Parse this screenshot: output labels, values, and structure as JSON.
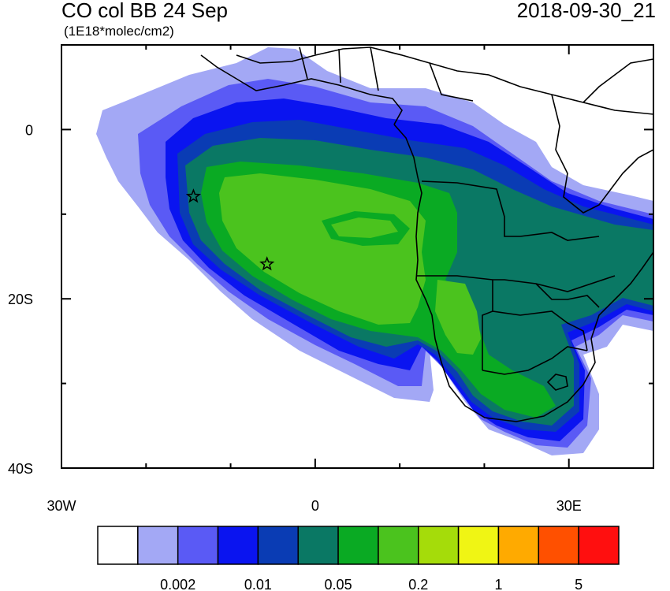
{
  "map": {
    "title": "CO col BB 24 Sep",
    "units": "(1E18*molec/cm2)",
    "timestamp": "2018-09-30_21",
    "x_ticks": [
      {
        "lon": -30,
        "label": "30W"
      },
      {
        "lon": 0,
        "label": "0"
      },
      {
        "lon": 30,
        "label": "30E"
      }
    ],
    "y_ticks": [
      {
        "lat": 0,
        "label": "0"
      },
      {
        "lat": -20,
        "label": "20S"
      },
      {
        "lat": -40,
        "label": "40S"
      }
    ],
    "lon_range": [
      -30,
      40
    ],
    "lat_range": [
      -40,
      10
    ],
    "markers": [
      {
        "type": "star",
        "lon": -14.4,
        "lat": -7.9
      },
      {
        "type": "star",
        "lon": -5.7,
        "lat": -15.9
      }
    ],
    "colorbar": {
      "colors": [
        "#ffffff",
        "#a3a8f5",
        "#5a5af5",
        "#0a14f0",
        "#0a3cb4",
        "#0a7864",
        "#0aaa23",
        "#4bc31e",
        "#a5dc0a",
        "#f0f514",
        "#ffaa00",
        "#ff5000",
        "#ff0f0f"
      ],
      "labels": [
        {
          "boundary": 2,
          "text": "0.002"
        },
        {
          "boundary": 4,
          "text": "0.01"
        },
        {
          "boundary": 6,
          "text": "0.05"
        },
        {
          "boundary": 8,
          "text": "0.2"
        },
        {
          "boundary": 10,
          "text": "1"
        },
        {
          "boundary": 12,
          "text": "5"
        }
      ]
    }
  }
}
